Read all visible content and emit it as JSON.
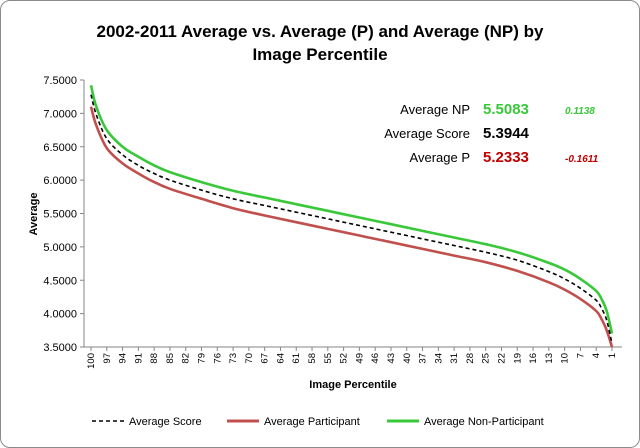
{
  "chart_data": {
    "type": "line",
    "title_lines": [
      "2002-2011 Average vs. Average (P) and Average (NP) by",
      "Image Percentile"
    ],
    "xlabel": "Image Percentile",
    "ylabel": "Average",
    "ylim": [
      3.5,
      7.5
    ],
    "yticks": [
      "3.5000",
      "4.0000",
      "4.5000",
      "5.0000",
      "5.5000",
      "6.0000",
      "6.5000",
      "7.0000",
      "7.5000"
    ],
    "ytick_values": [
      3.5,
      4.0,
      4.5,
      5.0,
      5.5,
      6.0,
      6.5,
      7.0,
      7.5
    ],
    "xticks": [
      "100",
      "97",
      "94",
      "91",
      "88",
      "85",
      "82",
      "79",
      "76",
      "73",
      "70",
      "67",
      "64",
      "61",
      "58",
      "55",
      "52",
      "49",
      "46",
      "43",
      "40",
      "37",
      "34",
      "31",
      "28",
      "25",
      "22",
      "19",
      "16",
      "13",
      "10",
      "7",
      "4",
      "1"
    ],
    "grid": false,
    "legend_position": "bottom",
    "series": [
      {
        "name": "Average Score",
        "color": "#000000",
        "style": "dashed",
        "percentiles": [
          100,
          99,
          97,
          94,
          91,
          88,
          85,
          79,
          73,
          67,
          61,
          55,
          49,
          43,
          37,
          31,
          25,
          19,
          13,
          10,
          7,
          4,
          3,
          2,
          1
        ],
        "values": [
          7.28,
          6.98,
          6.62,
          6.38,
          6.22,
          6.1,
          6.0,
          5.85,
          5.72,
          5.62,
          5.52,
          5.42,
          5.32,
          5.22,
          5.12,
          5.02,
          4.92,
          4.8,
          4.63,
          4.52,
          4.38,
          4.2,
          4.08,
          3.9,
          3.55
        ]
      },
      {
        "name": "Average Participant",
        "color": "#c0504d",
        "style": "solid",
        "percentiles": [
          100,
          99,
          97,
          94,
          91,
          88,
          85,
          79,
          73,
          67,
          61,
          55,
          49,
          43,
          37,
          31,
          25,
          19,
          13,
          10,
          7,
          4,
          3,
          2,
          1
        ],
        "values": [
          7.1,
          6.82,
          6.48,
          6.25,
          6.1,
          5.97,
          5.87,
          5.72,
          5.58,
          5.47,
          5.37,
          5.27,
          5.17,
          5.07,
          4.97,
          4.87,
          4.77,
          4.64,
          4.47,
          4.36,
          4.22,
          4.04,
          3.92,
          3.75,
          3.5
        ]
      },
      {
        "name": "Average Non-Participant",
        "color": "#39c83a",
        "style": "solid",
        "percentiles": [
          100,
          99,
          97,
          94,
          91,
          88,
          85,
          79,
          73,
          67,
          61,
          55,
          49,
          43,
          37,
          31,
          25,
          19,
          13,
          10,
          7,
          4,
          3,
          2,
          1
        ],
        "values": [
          7.42,
          7.1,
          6.75,
          6.5,
          6.35,
          6.22,
          6.12,
          5.97,
          5.84,
          5.74,
          5.64,
          5.54,
          5.44,
          5.34,
          5.24,
          5.14,
          5.04,
          4.92,
          4.76,
          4.66,
          4.52,
          4.34,
          4.22,
          4.04,
          3.7
        ]
      }
    ],
    "annotations": [
      {
        "label": "Average NP",
        "value": "5.5083",
        "diff": "0.1138",
        "color": "#39c83a"
      },
      {
        "label": "Average Score",
        "value": "5.3944",
        "diff": "",
        "color": "#000000"
      },
      {
        "label": "Average P",
        "value": "5.2333",
        "diff": "-0.1611",
        "color": "#c00000"
      }
    ]
  }
}
